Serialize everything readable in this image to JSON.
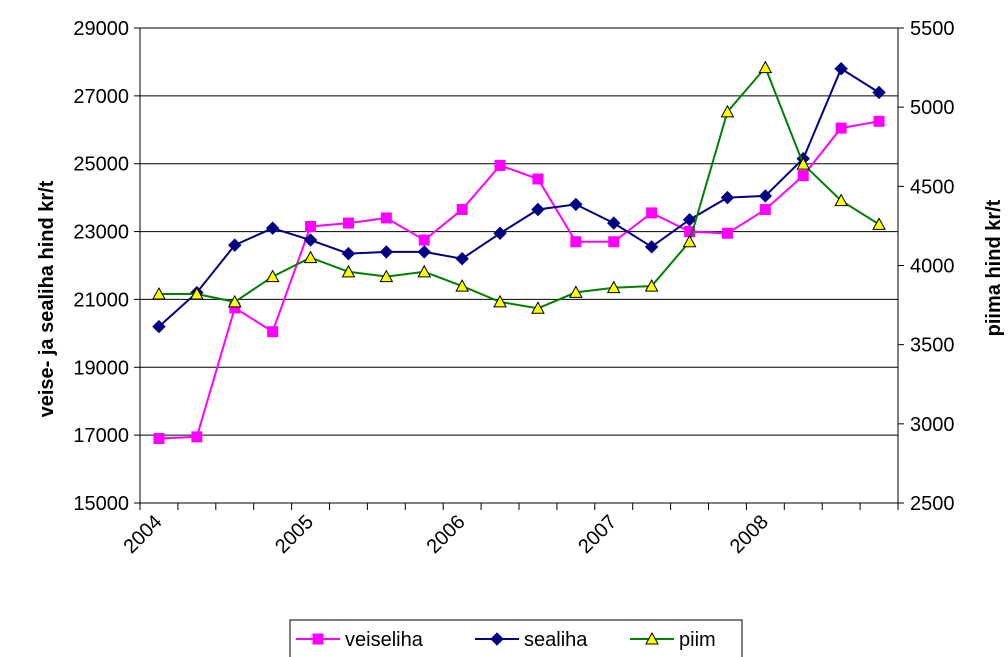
{
  "chart_data": {
    "type": "line",
    "title": "",
    "xlabel": "",
    "ylabel": "veise- ja sealiha hind kr/t",
    "y2label": "piima hind kr/t",
    "ylim": [
      15000,
      29000
    ],
    "y2lim": [
      2500,
      5500
    ],
    "yticks": [
      "15000",
      "17000",
      "19000",
      "21000",
      "23000",
      "25000",
      "27000",
      "29000"
    ],
    "y2ticks": [
      "2500",
      "3000",
      "3500",
      "4000",
      "4500",
      "5000",
      "5500"
    ],
    "xticks": [
      "2004",
      "2005",
      "2006",
      "2007",
      "2008"
    ],
    "grid": true,
    "legend": "bottom",
    "series": [
      {
        "name": "veiseliha",
        "axis": "left",
        "color": "#FF00FF",
        "marker": "square",
        "values": [
          16900,
          16950,
          20750,
          20050,
          23150,
          23250,
          23400,
          22750,
          23650,
          24950,
          24550,
          22700,
          22700,
          23550,
          23000,
          22950,
          23650,
          24650,
          26050,
          26250
        ]
      },
      {
        "name": "sealiha",
        "axis": "left",
        "color": "#000080",
        "marker": "diamond",
        "values": [
          20200,
          21200,
          22600,
          23100,
          22750,
          22350,
          22400,
          22400,
          22200,
          22950,
          23650,
          23800,
          23250,
          22550,
          23350,
          24000,
          24050,
          25150,
          27800,
          27100
        ]
      },
      {
        "name": "piim",
        "axis": "right",
        "color": "#008000",
        "marker": "triangle",
        "markerFill": "#FFFF00",
        "values": [
          3820,
          3820,
          3770,
          3930,
          4050,
          3960,
          3930,
          3960,
          3870,
          3770,
          3730,
          3830,
          3860,
          3870,
          4150,
          4970,
          5250,
          4640,
          4410,
          4260
        ]
      }
    ]
  }
}
